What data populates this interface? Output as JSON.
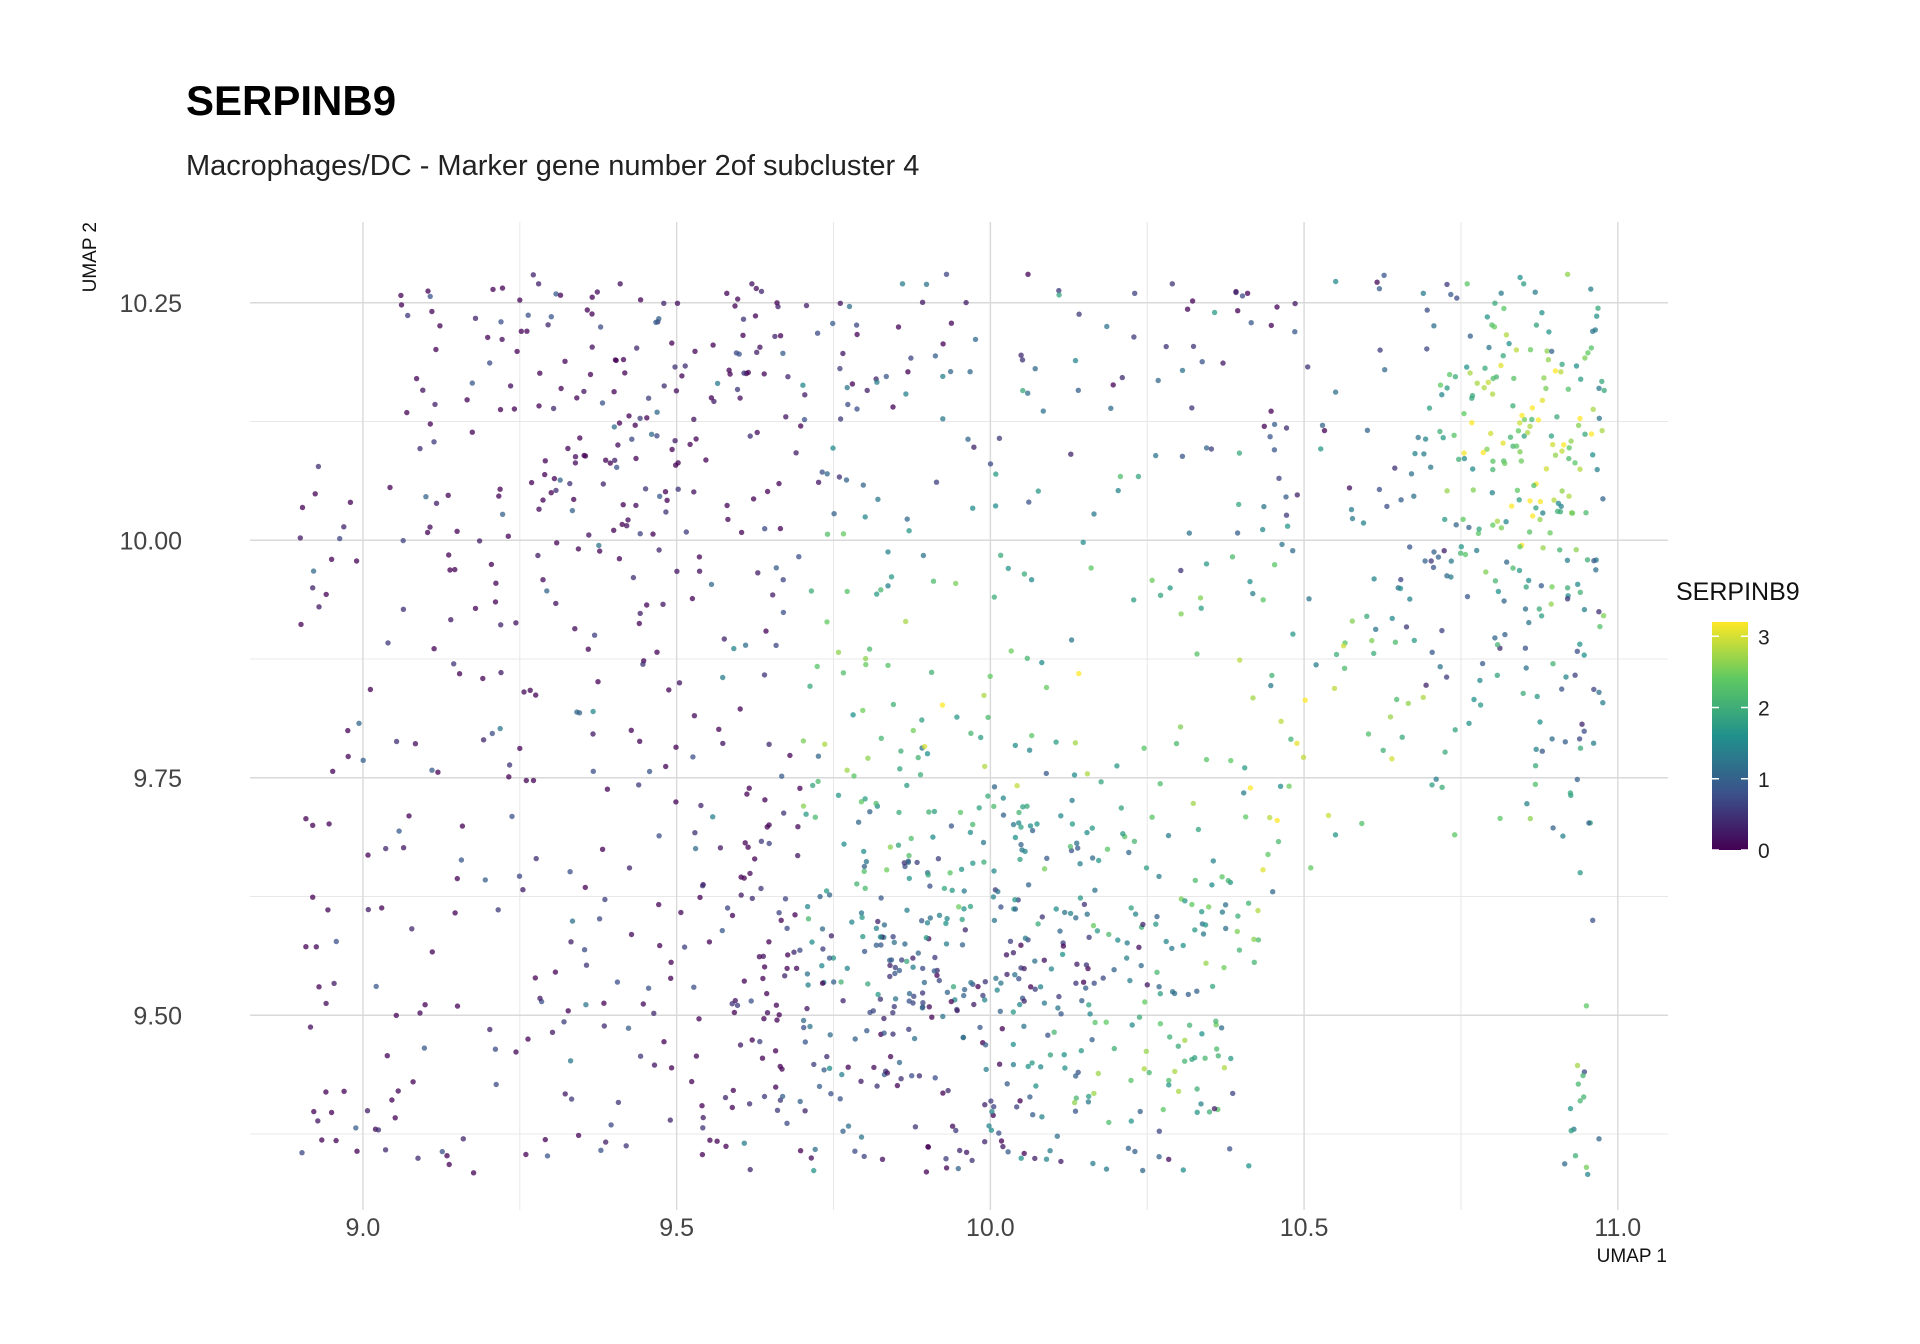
{
  "chart_data": {
    "type": "scatter",
    "title": "SERPINB9",
    "subtitle": "Macrophages/DC - Marker gene number 2of subcluster 4",
    "xlabel": "UMAP 1",
    "ylabel": "UMAP 2",
    "xlim": [
      8.82,
      11.08
    ],
    "ylim": [
      9.295,
      10.335
    ],
    "x_ticks": [
      9.0,
      9.5,
      10.0,
      10.5,
      11.0
    ],
    "x_tick_labels": [
      "9.0",
      "9.5",
      "10.0",
      "10.5",
      "11.0"
    ],
    "y_ticks": [
      9.5,
      9.75,
      10.0,
      10.25
    ],
    "y_tick_labels": [
      "9.50",
      "9.75",
      "10.00",
      "10.25"
    ],
    "grid": true,
    "color_scale": {
      "title": "SERPINB9",
      "palette": "viridis",
      "min": 0,
      "max": 3.2,
      "ticks": [
        0,
        1,
        2,
        3
      ],
      "tick_labels": [
        "0",
        "1",
        "2",
        "3"
      ],
      "colors": [
        "#440154",
        "#3b528b",
        "#21918c",
        "#5ec962",
        "#fde725"
      ]
    },
    "legend_position": "right",
    "point_alpha": 0.75,
    "n_points": 1600,
    "points_xy_sample": [
      [
        8.92,
        9.95
      ],
      [
        8.93,
        9.93
      ],
      [
        8.95,
        9.98
      ],
      [
        8.98,
        10.04
      ],
      [
        8.92,
        9.7
      ],
      [
        8.93,
        9.53
      ],
      [
        8.97,
        9.42
      ],
      [
        9.02,
        9.38
      ],
      [
        9.08,
        9.43
      ],
      [
        9.16,
        9.37
      ],
      [
        9.22,
        10.23
      ],
      [
        9.28,
        10.27
      ],
      [
        9.3,
        10.05
      ],
      [
        9.41,
        10.27
      ],
      [
        9.47,
        10.23
      ],
      [
        9.58,
        10.26
      ],
      [
        9.62,
        10.27
      ],
      [
        9.66,
        10.25
      ],
      [
        9.74,
        10.07
      ],
      [
        9.86,
        10.27
      ],
      [
        9.93,
        10.28
      ],
      [
        10.06,
        10.28
      ],
      [
        10.23,
        10.26
      ],
      [
        10.29,
        10.27
      ],
      [
        10.41,
        10.26
      ],
      [
        10.69,
        10.26
      ],
      [
        10.76,
        10.27
      ],
      [
        10.85,
        10.27
      ],
      [
        10.92,
        10.28
      ],
      [
        10.96,
        10.22
      ],
      [
        10.97,
        10.16
      ],
      [
        10.96,
        10.09
      ],
      [
        10.92,
        9.95
      ],
      [
        10.97,
        9.84
      ],
      [
        10.87,
        9.78
      ],
      [
        10.94,
        9.65
      ],
      [
        10.96,
        9.6
      ],
      [
        10.95,
        9.51
      ],
      [
        10.94,
        9.41
      ],
      [
        10.93,
        9.38
      ],
      [
        10.97,
        9.37
      ],
      [
        10.95,
        9.34
      ],
      [
        10.72,
        9.74
      ],
      [
        10.74,
        9.69
      ],
      [
        10.64,
        9.77
      ],
      [
        10.55,
        9.69
      ],
      [
        10.42,
        9.58
      ],
      [
        10.36,
        9.49
      ],
      [
        10.3,
        9.42
      ],
      [
        10.22,
        9.36
      ],
      [
        10.14,
        9.44
      ],
      [
        10.08,
        9.53
      ],
      [
        9.96,
        9.59
      ],
      [
        9.9,
        9.65
      ],
      [
        9.82,
        9.72
      ],
      [
        10.6,
        9.92
      ],
      [
        10.65,
        9.95
      ],
      [
        10.8,
        10.05
      ],
      [
        10.86,
        10.12
      ],
      [
        10.45,
        9.63
      ]
    ]
  }
}
